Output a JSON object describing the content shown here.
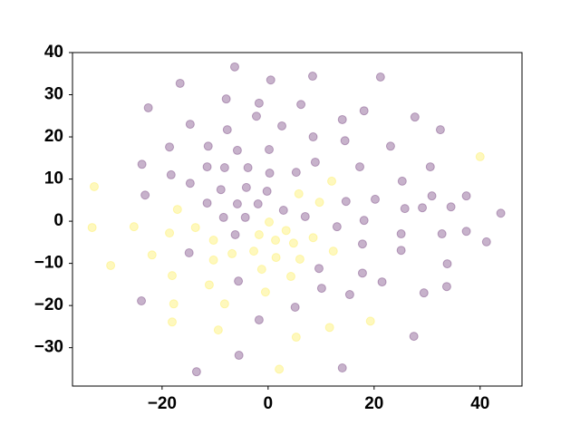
{
  "chart_data": {
    "type": "scatter",
    "xlim": [
      -36.9,
      47.9
    ],
    "ylim": [
      -39.1,
      40
    ],
    "xticks": [
      {
        "value": -20,
        "label": "−20"
      },
      0,
      20,
      40
    ],
    "yticks": [
      {
        "value": -30,
        "label": "−30"
      },
      {
        "value": -20,
        "label": "−20"
      },
      {
        "value": -10,
        "label": "−10"
      },
      0,
      10,
      20,
      30,
      40
    ],
    "marker_opacity": 0.3,
    "series": [
      {
        "color": "#440154",
        "x": [
          -6.3,
          8.4,
          21.2,
          -16.6,
          0.5,
          -22.6,
          -7.9,
          -1.7,
          6.2,
          -14.7,
          -7.7,
          2.6,
          14.0,
          18.1,
          27.7,
          -2.2,
          8.5,
          32.5,
          -18.6,
          -11.3,
          -5.8,
          0.2,
          14.5,
          23.1,
          -23.8,
          -18.3,
          -11.5,
          -8.2,
          -3.8,
          0.3,
          5.3,
          8.9,
          17.3,
          30.6,
          25.3,
          -23.2,
          -14.7,
          -8.9,
          -4.1,
          -0.2,
          14.7,
          20.2,
          30.9,
          25.8,
          29.1,
          34.5,
          37.4,
          43.9,
          -11.5,
          -5.8,
          -4.3,
          -8.4,
          -1.9,
          2.9,
          7.0,
          13.0,
          18.1,
          -6.2,
          25.1,
          32.8,
          37.4,
          41.2,
          17.8,
          25.1,
          -14.9,
          9.6,
          33.8,
          17.8,
          -5.6,
          21.5,
          33.7,
          10.1,
          15.4,
          29.4,
          -23.9,
          5.1,
          -1.7,
          27.5,
          -5.5,
          -13.5,
          14.0
        ],
        "y": [
          36.6,
          34.4,
          34.2,
          32.7,
          33.5,
          26.9,
          29.0,
          28.0,
          27.7,
          23.0,
          21.7,
          22.6,
          24.1,
          26.2,
          24.7,
          24.9,
          20.0,
          21.7,
          17.6,
          17.8,
          16.8,
          17.0,
          19.1,
          17.8,
          13.5,
          11.0,
          12.9,
          12.7,
          12.7,
          11.4,
          11.6,
          14.0,
          12.9,
          12.9,
          9.5,
          6.2,
          9.0,
          7.5,
          8.0,
          7.1,
          4.7,
          5.2,
          6.0,
          3.0,
          3.2,
          3.4,
          6.0,
          1.9,
          4.3,
          4.1,
          0.9,
          0.9,
          4.1,
          2.6,
          1.1,
          -1.3,
          0.2,
          -3.2,
          -3.0,
          -3.0,
          -2.4,
          -4.9,
          -5.4,
          -6.9,
          -7.5,
          -11.2,
          -10.1,
          -12.3,
          -14.2,
          -14.4,
          -15.5,
          -15.9,
          -17.4,
          -17.0,
          -18.9,
          -20.4,
          -23.4,
          -27.3,
          -31.8,
          -35.7,
          -34.8
        ]
      },
      {
        "color": "#fde725",
        "x": [
          -32.8,
          -17.1,
          -25.3,
          -33.2,
          -18.6,
          -21.9,
          -29.7,
          12.0,
          5.8,
          9.7,
          0.2,
          3.4,
          8.5,
          -10.3,
          -1.7,
          1.4,
          4.8,
          -2.7,
          -10.3,
          1.5,
          6.0,
          12.3,
          -1.2,
          4.3,
          -18.1,
          -11.1,
          -0.5,
          -8.2,
          -17.8,
          -18.1,
          -9.4,
          11.6,
          19.3,
          5.3,
          2.1,
          40.0,
          -13.7,
          -6.8
        ],
        "y": [
          8.2,
          2.8,
          -1.3,
          -1.5,
          -2.8,
          -8.0,
          -10.5,
          9.5,
          6.5,
          4.5,
          -0.2,
          -2.2,
          -3.9,
          -4.5,
          -3.2,
          -4.5,
          -5.2,
          -7.1,
          -9.2,
          -8.6,
          -9.0,
          -7.1,
          -11.4,
          -13.1,
          -12.9,
          -15.1,
          -16.8,
          -19.6,
          -19.6,
          -23.9,
          -25.8,
          -25.2,
          -23.7,
          -27.5,
          -35.1,
          15.3,
          -1.5,
          -7.7
        ]
      }
    ]
  }
}
